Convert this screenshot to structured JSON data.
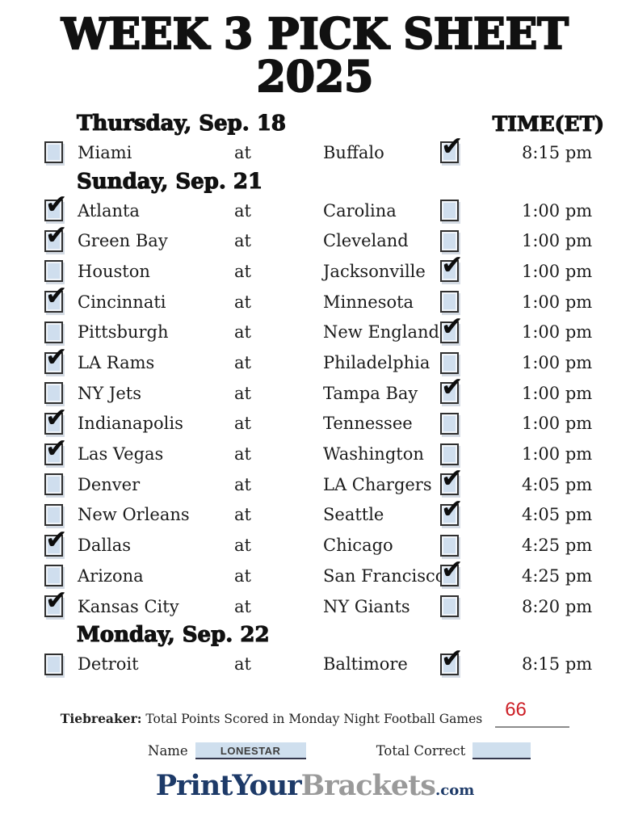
{
  "page": {
    "title_line1": "WEEK 3 PICK SHEET",
    "title_line2": "2025",
    "at_label": "at"
  },
  "icons": {
    "checkmark": "✔"
  },
  "colors": {
    "checkbox_fill": "#cfdeee",
    "checkbox_border": "#2f2f2f",
    "check_color": "#0d0d0d",
    "tiebreaker_red": "#cd2027",
    "logo_navy": "#1d3a68",
    "logo_gray": "#9a9a9a"
  },
  "sections": [
    {
      "header": "Thursday, Sep. 18",
      "time_header": "TIME(ET)",
      "games": [
        {
          "away": "Miami",
          "home": "Buffalo",
          "time": "8:15 pm",
          "away_checked": false,
          "home_checked": true
        }
      ]
    },
    {
      "header": "Sunday, Sep. 21",
      "games": [
        {
          "away": "Atlanta",
          "home": "Carolina",
          "time": "1:00 pm",
          "away_checked": true,
          "home_checked": false
        },
        {
          "away": "Green Bay",
          "home": "Cleveland",
          "time": "1:00 pm",
          "away_checked": true,
          "home_checked": false
        },
        {
          "away": "Houston",
          "home": "Jacksonville",
          "time": "1:00 pm",
          "away_checked": false,
          "home_checked": true
        },
        {
          "away": "Cincinnati",
          "home": "Minnesota",
          "time": "1:00 pm",
          "away_checked": true,
          "home_checked": false
        },
        {
          "away": "Pittsburgh",
          "home": "New England",
          "time": "1:00 pm",
          "away_checked": false,
          "home_checked": true
        },
        {
          "away": "LA Rams",
          "home": "Philadelphia",
          "time": "1:00 pm",
          "away_checked": true,
          "home_checked": false
        },
        {
          "away": "NY Jets",
          "home": "Tampa Bay",
          "time": "1:00 pm",
          "away_checked": false,
          "home_checked": true
        },
        {
          "away": "Indianapolis",
          "home": "Tennessee",
          "time": "1:00 pm",
          "away_checked": true,
          "home_checked": false
        },
        {
          "away": "Las Vegas",
          "home": "Washington",
          "time": "1:00 pm",
          "away_checked": true,
          "home_checked": false
        },
        {
          "away": "Denver",
          "home": "LA Chargers",
          "time": "4:05 pm",
          "away_checked": false,
          "home_checked": true
        },
        {
          "away": "New Orleans",
          "home": "Seattle",
          "time": "4:05 pm",
          "away_checked": false,
          "home_checked": true
        },
        {
          "away": "Dallas",
          "home": "Chicago",
          "time": "4:25 pm",
          "away_checked": true,
          "home_checked": false
        },
        {
          "away": "Arizona",
          "home": "San Francisco",
          "time": "4:25 pm",
          "away_checked": false,
          "home_checked": true
        },
        {
          "away": "Kansas City",
          "home": "NY Giants",
          "time": "8:20 pm",
          "away_checked": true,
          "home_checked": false
        }
      ]
    },
    {
      "header": "Monday, Sep. 22",
      "games": [
        {
          "away": "Detroit",
          "home": "Baltimore",
          "time": "8:15 pm",
          "away_checked": false,
          "home_checked": true
        }
      ]
    }
  ],
  "tiebreaker": {
    "label_bold": "Tiebreaker:",
    "label_rest": " Total Points Scored in Monday Night Football Games",
    "value": "66"
  },
  "footer_fields": {
    "name_label": "Name",
    "name_value": "LONESTAR",
    "total_correct_label": "Total Correct",
    "total_correct_value": ""
  },
  "logo": {
    "part1": "PrintYour",
    "part2": "Brackets",
    "part3": ".com"
  }
}
